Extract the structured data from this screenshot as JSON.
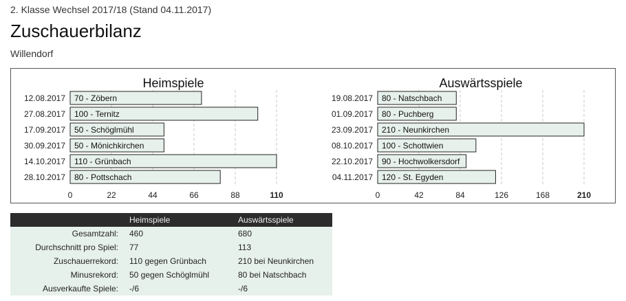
{
  "header": {
    "subtitle": "2. Klasse Wechsel 2017/18 (Stand 04.11.2017)",
    "title": "Zuschauerbilanz",
    "team": "Willendorf"
  },
  "colors": {
    "bar_fill": "#e7f1ec",
    "bar_stroke": "#222222",
    "grid": "#c8c8c8",
    "table_header": "#2c2c2c",
    "table_row": "#e7f1ec"
  },
  "chart_data": [
    {
      "type": "bar",
      "orientation": "horizontal",
      "title": "Heimspiele",
      "xlim": [
        0,
        110
      ],
      "ticks": [
        0,
        22,
        44,
        66,
        88,
        110
      ],
      "bold_last_tick": true,
      "grid": true,
      "categories": [
        "12.08.2017",
        "27.08.2017",
        "17.09.2017",
        "30.09.2017",
        "14.10.2017",
        "28.10.2017"
      ],
      "values": [
        70,
        100,
        50,
        50,
        110,
        80
      ],
      "bar_labels": [
        "70 - Zöbern",
        "100 - Ternitz",
        "50 - Schöglmühl",
        "50 - Mönichkirchen",
        "110 - Grünbach",
        "80 - Pottschach"
      ]
    },
    {
      "type": "bar",
      "orientation": "horizontal",
      "title": "Auswärtsspiele",
      "xlim": [
        0,
        210
      ],
      "ticks": [
        0,
        42,
        84,
        126,
        168,
        210
      ],
      "bold_last_tick": true,
      "grid": true,
      "categories": [
        "19.08.2017",
        "01.09.2017",
        "23.09.2017",
        "08.10.2017",
        "22.10.2017",
        "04.11.2017"
      ],
      "values": [
        80,
        80,
        210,
        100,
        90,
        120
      ],
      "bar_labels": [
        "80 - Natschbach",
        "80 - Puchberg",
        "210 - Neunkirchen",
        "100 - Schottwien",
        "90 - Hochwolkersdorf",
        "120 - St. Egyden"
      ]
    }
  ],
  "stats": {
    "col_home": "Heimspiele",
    "col_away": "Auswärtsspiele",
    "rows": [
      {
        "label": "Gesamtzahl:",
        "home": "460",
        "away": "680"
      },
      {
        "label": "Durchschnitt pro Spiel:",
        "home": "77",
        "away": "113"
      },
      {
        "label": "Zuschauerrekord:",
        "home": "110 gegen Grünbach",
        "away": "210 bei Neunkirchen"
      },
      {
        "label": "Minusrekord:",
        "home": "50 gegen Schöglmühl",
        "away": "80 bei Natschbach"
      },
      {
        "label": "Ausverkaufte Spiele:",
        "home": "-/6",
        "away": "-/6"
      }
    ]
  }
}
